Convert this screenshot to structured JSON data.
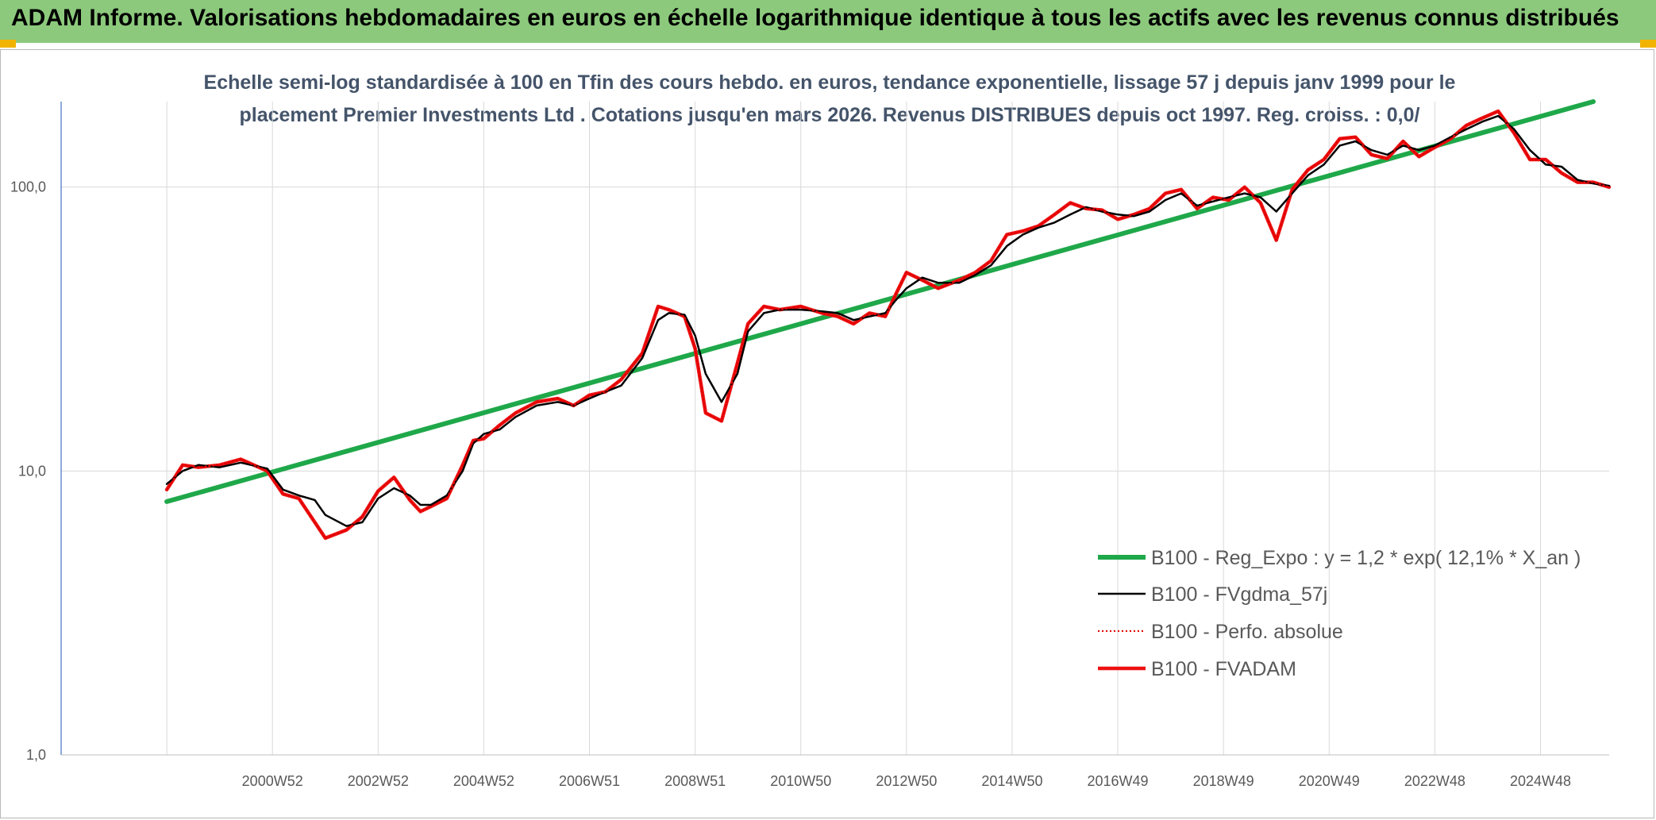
{
  "header": {
    "title": "ADAM Informe. Valorisations hebdomadaires en euros en échelle logarithmique identique à tous les actifs avec les revenus connus distribués",
    "background": "#8cc97c",
    "corner_color": "#f2b300"
  },
  "chart_data": {
    "type": "line",
    "title_lines": [
      "Echelle semi-log standardisée à 100 en Tfin des cours hebdo. en euros, tendance exponentielle, lissage 57 j depuis janv 1999 pour le",
      "placement Premier Investments Ltd . Cotations jusqu'en mars 2026. Revenus DISTRIBUES depuis oct 1997. Reg. croiss. : 0,0/"
    ],
    "xlabel": "",
    "ylabel": "",
    "y_scale": "log",
    "ylim": [
      1,
      200
    ],
    "y_ticks": [
      {
        "value": 1,
        "label": "1,0"
      },
      {
        "value": 10,
        "label": "10,0"
      },
      {
        "value": 100,
        "label": "100,0"
      }
    ],
    "xlim": [
      1997.0,
      2026.3
    ],
    "x_ticks": [
      {
        "value": 2001.0,
        "label": "2000W52"
      },
      {
        "value": 2003.0,
        "label": "2002W52"
      },
      {
        "value": 2005.0,
        "label": "2004W52"
      },
      {
        "value": 2007.0,
        "label": "2006W51"
      },
      {
        "value": 2009.0,
        "label": "2008W51"
      },
      {
        "value": 2011.0,
        "label": "2010W50"
      },
      {
        "value": 2013.0,
        "label": "2012W50"
      },
      {
        "value": 2015.0,
        "label": "2014W50"
      },
      {
        "value": 2017.0,
        "label": "2016W49"
      },
      {
        "value": 2019.0,
        "label": "2018W49"
      },
      {
        "value": 2021.0,
        "label": "2020W49"
      },
      {
        "value": 2023.0,
        "label": "2022W48"
      },
      {
        "value": 2025.0,
        "label": "2024W48"
      }
    ],
    "x_gridlines": [
      1999.0,
      2001.0,
      2003.0,
      2005.0,
      2007.0,
      2009.0,
      2011.0,
      2013.0,
      2015.0,
      2017.0,
      2019.0,
      2021.0,
      2023.0,
      2025.0
    ],
    "grid": true,
    "legend_position": "bottom-right",
    "series": [
      {
        "name": "B100 - Reg_Expo : y = 1,2 * exp( 12,1% *  X_an )",
        "color": "#1fa84a",
        "style": "thick",
        "x": [
          1999.0,
          2026.0
        ],
        "y": [
          7.8,
          200
        ]
      },
      {
        "name": "B100 - FVgdma_57j",
        "color": "#000000",
        "style": "thin",
        "x": [
          1999.0,
          1999.3,
          1999.6,
          2000.0,
          2000.4,
          2000.9,
          2001.2,
          2001.5,
          2001.8,
          2002.0,
          2002.4,
          2002.7,
          2003.0,
          2003.3,
          2003.6,
          2003.8,
          2004.0,
          2004.3,
          2004.6,
          2004.8,
          2005.0,
          2005.3,
          2005.6,
          2006.0,
          2006.4,
          2006.7,
          2007.0,
          2007.3,
          2007.6,
          2008.0,
          2008.3,
          2008.5,
          2008.8,
          2009.0,
          2009.2,
          2009.5,
          2009.8,
          2010.0,
          2010.3,
          2010.6,
          2011.0,
          2011.4,
          2011.7,
          2012.0,
          2012.3,
          2012.6,
          2012.8,
          2013.0,
          2013.3,
          2013.6,
          2014.0,
          2014.3,
          2014.6,
          2014.9,
          2015.2,
          2015.5,
          2015.8,
          2016.1,
          2016.4,
          2016.7,
          2017.0,
          2017.3,
          2017.6,
          2017.9,
          2018.2,
          2018.5,
          2018.8,
          2019.1,
          2019.4,
          2019.7,
          2020.0,
          2020.3,
          2020.6,
          2020.9,
          2021.2,
          2021.5,
          2021.8,
          2022.1,
          2022.4,
          2022.7,
          2023.0,
          2023.3,
          2023.6,
          2023.9,
          2024.2,
          2024.5,
          2024.8,
          2025.1,
          2025.4,
          2025.7,
          2026.0,
          2026.3
        ],
        "y": [
          9.0,
          10.0,
          10.5,
          10.3,
          10.7,
          10.2,
          8.6,
          8.2,
          7.9,
          7.0,
          6.4,
          6.6,
          8.0,
          8.7,
          8.2,
          7.6,
          7.6,
          8.2,
          10.0,
          12.5,
          13.5,
          14.0,
          15.5,
          17.0,
          17.5,
          17.0,
          18.0,
          19.0,
          20.0,
          25.0,
          34.0,
          36.0,
          35.5,
          30.0,
          22.0,
          17.5,
          22.0,
          31.0,
          36.0,
          37.0,
          37.0,
          36.5,
          36.0,
          34.0,
          35.0,
          36.0,
          40.0,
          44.0,
          48.0,
          46.0,
          46.0,
          49.0,
          53.0,
          62.0,
          68.0,
          72.0,
          75.0,
          80.0,
          85.0,
          82.0,
          80.0,
          79.0,
          82.0,
          90.0,
          95.0,
          86.0,
          89.0,
          92.0,
          95.0,
          92.0,
          82.0,
          95.0,
          110.0,
          120.0,
          140.0,
          145.0,
          135.0,
          130.0,
          140.0,
          135.0,
          140.0,
          150.0,
          160.0,
          170.0,
          178.0,
          160.0,
          135.0,
          120.0,
          118.0,
          106.0,
          103.0,
          101.0
        ]
      },
      {
        "name": "B100 - Perfo. absolue",
        "color": "#e00000",
        "style": "dotted",
        "x": [
          1999.0,
          1999.3,
          1999.6,
          2000.0,
          2000.4,
          2000.9,
          2001.2,
          2001.5,
          2001.8,
          2002.0,
          2002.4,
          2002.7,
          2003.0,
          2003.3,
          2003.6,
          2003.8,
          2004.0,
          2004.3,
          2004.6,
          2004.8,
          2005.0,
          2005.3,
          2005.6,
          2006.0,
          2006.4,
          2006.7,
          2007.0,
          2007.3,
          2007.6,
          2008.0,
          2008.3,
          2008.5,
          2008.8,
          2009.0,
          2009.2,
          2009.5,
          2009.8,
          2010.0,
          2010.3,
          2010.6,
          2011.0,
          2011.4,
          2011.7,
          2012.0,
          2012.3,
          2012.6,
          2012.8,
          2013.0,
          2013.3,
          2013.6,
          2014.0,
          2014.3,
          2014.6,
          2014.9,
          2015.2,
          2015.5,
          2015.8,
          2016.1,
          2016.4,
          2016.7,
          2017.0,
          2017.3,
          2017.6,
          2017.9,
          2018.2,
          2018.5,
          2018.8,
          2019.1,
          2019.4,
          2019.7,
          2020.0,
          2020.3,
          2020.6,
          2020.9,
          2021.2,
          2021.5,
          2021.8,
          2022.1,
          2022.4,
          2022.7,
          2023.0,
          2023.3,
          2023.6,
          2023.9,
          2024.2,
          2024.5,
          2024.8,
          2025.1,
          2025.4,
          2025.7,
          2026.0,
          2026.3
        ],
        "y": [
          8.6,
          10.5,
          10.3,
          10.5,
          11.0,
          10.0,
          8.3,
          8.0,
          6.6,
          5.8,
          6.2,
          6.9,
          8.5,
          9.5,
          7.9,
          7.2,
          7.5,
          8.0,
          10.5,
          12.8,
          13.0,
          14.5,
          16.0,
          17.5,
          18.0,
          17.0,
          18.5,
          19.0,
          21.0,
          26.0,
          38.0,
          37.0,
          35.0,
          27.0,
          16.0,
          15.0,
          24.0,
          33.0,
          38.0,
          37.0,
          38.0,
          36.0,
          35.0,
          33.0,
          36.0,
          35.0,
          42.0,
          50.0,
          47.0,
          44.0,
          47.0,
          50.0,
          55.0,
          68.0,
          70.0,
          73.0,
          80.0,
          88.0,
          84.0,
          83.0,
          77.0,
          80.0,
          84.0,
          95.0,
          98.0,
          84.0,
          92.0,
          90.0,
          100.0,
          88.0,
          65.0,
          98.0,
          115.0,
          125.0,
          148.0,
          150.0,
          130.0,
          126.0,
          145.0,
          128.0,
          138.0,
          148.0,
          165.0,
          175.0,
          185.0,
          155.0,
          125.0,
          125.0,
          112.0,
          104.0,
          104.0,
          100.0
        ]
      },
      {
        "name": "B100 - FVADAM",
        "color": "#ee1111",
        "style": "thick",
        "x": [
          1999.0,
          1999.3,
          1999.6,
          2000.0,
          2000.4,
          2000.9,
          2001.2,
          2001.5,
          2001.8,
          2002.0,
          2002.4,
          2002.7,
          2003.0,
          2003.3,
          2003.6,
          2003.8,
          2004.0,
          2004.3,
          2004.6,
          2004.8,
          2005.0,
          2005.3,
          2005.6,
          2006.0,
          2006.4,
          2006.7,
          2007.0,
          2007.3,
          2007.6,
          2008.0,
          2008.3,
          2008.5,
          2008.8,
          2009.0,
          2009.2,
          2009.5,
          2009.8,
          2010.0,
          2010.3,
          2010.6,
          2011.0,
          2011.4,
          2011.7,
          2012.0,
          2012.3,
          2012.6,
          2012.8,
          2013.0,
          2013.3,
          2013.6,
          2014.0,
          2014.3,
          2014.6,
          2014.9,
          2015.2,
          2015.5,
          2015.8,
          2016.1,
          2016.4,
          2016.7,
          2017.0,
          2017.3,
          2017.6,
          2017.9,
          2018.2,
          2018.5,
          2018.8,
          2019.1,
          2019.4,
          2019.7,
          2020.0,
          2020.3,
          2020.6,
          2020.9,
          2021.2,
          2021.5,
          2021.8,
          2022.1,
          2022.4,
          2022.7,
          2023.0,
          2023.3,
          2023.6,
          2023.9,
          2024.2,
          2024.5,
          2024.8,
          2025.1,
          2025.4,
          2025.7,
          2026.0,
          2026.3
        ],
        "y": [
          8.6,
          10.5,
          10.3,
          10.5,
          11.0,
          10.0,
          8.3,
          8.0,
          6.6,
          5.8,
          6.2,
          6.9,
          8.5,
          9.5,
          7.9,
          7.2,
          7.5,
          8.0,
          10.5,
          12.8,
          13.0,
          14.5,
          16.0,
          17.5,
          18.0,
          17.0,
          18.5,
          19.0,
          21.0,
          26.0,
          38.0,
          37.0,
          35.0,
          27.0,
          16.0,
          15.0,
          24.0,
          33.0,
          38.0,
          37.0,
          38.0,
          36.0,
          35.0,
          33.0,
          36.0,
          35.0,
          42.0,
          50.0,
          47.0,
          44.0,
          47.0,
          50.0,
          55.0,
          68.0,
          70.0,
          73.0,
          80.0,
          88.0,
          84.0,
          83.0,
          77.0,
          80.0,
          84.0,
          95.0,
          98.0,
          84.0,
          92.0,
          90.0,
          100.0,
          88.0,
          65.0,
          98.0,
          115.0,
          125.0,
          148.0,
          150.0,
          130.0,
          126.0,
          145.0,
          128.0,
          138.0,
          148.0,
          165.0,
          175.0,
          185.0,
          155.0,
          125.0,
          125.0,
          112.0,
          104.0,
          104.0,
          100.0
        ]
      }
    ]
  }
}
